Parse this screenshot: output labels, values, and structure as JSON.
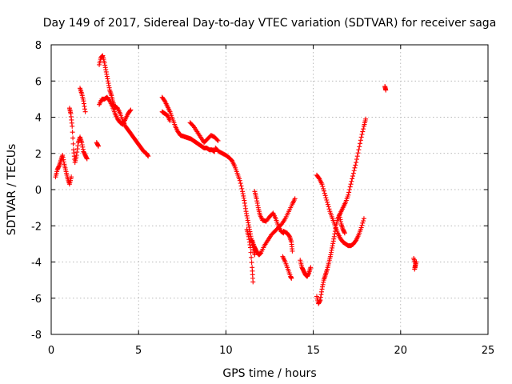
{
  "chart_data": {
    "type": "scatter",
    "title": "Day 149 of 2017, Sidereal Day-to-day VTEC variation (SDTVAR) for receiver saga",
    "xlabel": "GPS time / hours",
    "ylabel": "SDTVAR / TECUs",
    "xlim": [
      0,
      25
    ],
    "ylim": [
      -8,
      8
    ],
    "xticks": [
      0,
      5,
      10,
      15,
      20,
      25
    ],
    "yticks": [
      -8,
      -6,
      -4,
      -2,
      0,
      2,
      4,
      6,
      8
    ],
    "grid": true,
    "marker": "plus",
    "color": "#ff0000",
    "series": [
      {
        "name": "",
        "segments": [
          [
            [
              0.25,
              0.7
            ],
            [
              0.35,
              1.1
            ],
            [
              0.45,
              1.3
            ],
            [
              0.55,
              1.6
            ],
            [
              0.65,
              1.9
            ],
            [
              0.75,
              1.4
            ],
            [
              0.85,
              1.0
            ],
            [
              0.95,
              0.6
            ],
            [
              1.05,
              0.3
            ],
            [
              1.15,
              0.7
            ]
          ],
          [
            [
              1.05,
              4.5
            ],
            [
              1.12,
              4.2
            ],
            [
              1.2,
              3.5
            ],
            [
              1.28,
              2.2
            ],
            [
              1.36,
              1.5
            ],
            [
              1.45,
              1.9
            ],
            [
              1.55,
              2.6
            ],
            [
              1.65,
              2.9
            ],
            [
              1.75,
              2.6
            ],
            [
              1.85,
              2.1
            ],
            [
              1.95,
              1.9
            ],
            [
              2.05,
              1.7
            ]
          ],
          [
            [
              1.65,
              5.6
            ],
            [
              1.75,
              5.3
            ],
            [
              1.85,
              4.9
            ],
            [
              1.95,
              4.3
            ]
          ],
          [
            [
              2.75,
              6.9
            ],
            [
              2.85,
              7.3
            ],
            [
              2.95,
              7.4
            ],
            [
              3.05,
              7.0
            ],
            [
              3.15,
              6.5
            ],
            [
              3.25,
              6.0
            ],
            [
              3.35,
              5.5
            ],
            [
              3.45,
              5.2
            ],
            [
              3.55,
              4.8
            ],
            [
              3.65,
              4.5
            ]
          ],
          [
            [
              2.75,
              4.7
            ],
            [
              2.9,
              5.0
            ],
            [
              3.05,
              5.0
            ],
            [
              3.2,
              5.1
            ],
            [
              3.35,
              4.9
            ],
            [
              3.5,
              4.6
            ],
            [
              3.65,
              4.2
            ],
            [
              3.8,
              3.9
            ],
            [
              3.95,
              3.7
            ],
            [
              4.1,
              3.6
            ],
            [
              4.25,
              3.9
            ],
            [
              4.4,
              4.2
            ],
            [
              4.55,
              4.4
            ]
          ],
          [
            [
              3.65,
              4.6
            ],
            [
              3.8,
              4.5
            ],
            [
              3.95,
              4.2
            ],
            [
              4.1,
              3.8
            ],
            [
              4.25,
              3.5
            ],
            [
              4.4,
              3.3
            ],
            [
              4.55,
              3.1
            ],
            [
              4.7,
              2.9
            ],
            [
              4.85,
              2.7
            ],
            [
              5.0,
              2.5
            ],
            [
              5.15,
              2.3
            ],
            [
              5.3,
              2.1
            ],
            [
              5.45,
              2.0
            ],
            [
              5.55,
              1.85
            ]
          ],
          [
            [
              2.6,
              2.6
            ],
            [
              2.7,
              2.4
            ]
          ],
          [
            [
              6.35,
              5.1
            ],
            [
              6.5,
              4.9
            ],
            [
              6.65,
              4.6
            ],
            [
              6.8,
              4.3
            ],
            [
              6.95,
              3.9
            ],
            [
              7.1,
              3.5
            ],
            [
              7.25,
              3.2
            ],
            [
              7.4,
              3.0
            ],
            [
              7.55,
              2.95
            ],
            [
              7.7,
              2.9
            ],
            [
              7.85,
              2.85
            ],
            [
              8.0,
              2.8
            ],
            [
              8.15,
              2.7
            ],
            [
              8.3,
              2.6
            ],
            [
              8.45,
              2.5
            ],
            [
              8.6,
              2.4
            ],
            [
              8.75,
              2.3
            ],
            [
              8.9,
              2.3
            ],
            [
              9.05,
              2.2
            ],
            [
              9.2,
              2.2
            ],
            [
              9.35,
              2.1
            ]
          ],
          [
            [
              6.35,
              4.3
            ],
            [
              6.5,
              4.2
            ],
            [
              6.65,
              4.1
            ],
            [
              6.8,
              3.8
            ]
          ],
          [
            [
              7.95,
              3.7
            ],
            [
              8.15,
              3.5
            ],
            [
              8.35,
              3.2
            ],
            [
              8.55,
              2.9
            ],
            [
              8.75,
              2.6
            ],
            [
              8.95,
              2.8
            ],
            [
              9.15,
              3.0
            ],
            [
              9.35,
              2.9
            ],
            [
              9.55,
              2.7
            ]
          ],
          [
            [
              9.4,
              2.3
            ],
            [
              9.6,
              2.1
            ],
            [
              9.8,
              2.0
            ],
            [
              10.0,
              1.9
            ],
            [
              10.2,
              1.75
            ],
            [
              10.35,
              1.6
            ],
            [
              10.5,
              1.3
            ],
            [
              10.65,
              0.9
            ],
            [
              10.8,
              0.5
            ],
            [
              10.95,
              -0.1
            ],
            [
              11.05,
              -0.6
            ],
            [
              11.15,
              -1.2
            ],
            [
              11.25,
              -1.7
            ],
            [
              11.35,
              -2.2
            ],
            [
              11.45,
              -2.7
            ],
            [
              11.55,
              -3.2
            ],
            [
              11.65,
              -3.6
            ]
          ],
          [
            [
              11.2,
              -2.2
            ],
            [
              11.3,
              -2.6
            ],
            [
              11.4,
              -3.2
            ],
            [
              11.5,
              -4.3
            ],
            [
              11.55,
              -5.1
            ]
          ],
          [
            [
              11.5,
              -2.8
            ],
            [
              11.6,
              -3.1
            ],
            [
              11.7,
              -3.3
            ],
            [
              11.8,
              -3.5
            ],
            [
              11.9,
              -3.6
            ],
            [
              12.0,
              -3.5
            ]
          ],
          [
            [
              11.65,
              -0.1
            ],
            [
              11.75,
              -0.5
            ],
            [
              11.85,
              -1.0
            ],
            [
              11.95,
              -1.4
            ],
            [
              12.1,
              -1.7
            ],
            [
              12.3,
              -1.75
            ],
            [
              12.5,
              -1.5
            ],
            [
              12.7,
              -1.3
            ],
            [
              12.85,
              -1.6
            ],
            [
              13.0,
              -2.0
            ],
            [
              13.15,
              -2.3
            ],
            [
              13.3,
              -2.4
            ]
          ],
          [
            [
              12.0,
              -3.5
            ],
            [
              12.2,
              -3.1
            ],
            [
              12.4,
              -2.8
            ],
            [
              12.6,
              -2.5
            ],
            [
              12.8,
              -2.3
            ],
            [
              13.0,
              -2.1
            ],
            [
              13.2,
              -1.9
            ],
            [
              13.4,
              -1.6
            ],
            [
              13.6,
              -1.2
            ],
            [
              13.8,
              -0.8
            ],
            [
              13.95,
              -0.5
            ]
          ],
          [
            [
              13.3,
              -2.3
            ],
            [
              13.5,
              -2.4
            ],
            [
              13.65,
              -2.6
            ],
            [
              13.75,
              -2.9
            ],
            [
              13.8,
              -3.4
            ]
          ],
          [
            [
              13.25,
              -3.7
            ],
            [
              13.4,
              -4.0
            ],
            [
              13.55,
              -4.4
            ],
            [
              13.7,
              -4.8
            ],
            [
              13.75,
              -4.9
            ]
          ],
          [
            [
              14.25,
              -3.9
            ],
            [
              14.35,
              -4.3
            ],
            [
              14.45,
              -4.5
            ],
            [
              14.55,
              -4.7
            ],
            [
              14.65,
              -4.8
            ],
            [
              14.75,
              -4.6
            ],
            [
              14.85,
              -4.3
            ]
          ],
          [
            [
              15.2,
              0.8
            ],
            [
              15.35,
              0.6
            ],
            [
              15.5,
              0.3
            ],
            [
              15.65,
              -0.2
            ],
            [
              15.8,
              -0.7
            ],
            [
              15.95,
              -1.2
            ],
            [
              16.1,
              -1.6
            ],
            [
              16.25,
              -2.0
            ],
            [
              16.4,
              -2.4
            ],
            [
              16.55,
              -2.7
            ],
            [
              16.7,
              -2.9
            ],
            [
              16.85,
              -3.0
            ],
            [
              17.0,
              -3.1
            ],
            [
              17.15,
              -3.1
            ],
            [
              17.3,
              -3.0
            ],
            [
              17.45,
              -2.8
            ],
            [
              17.6,
              -2.5
            ],
            [
              17.75,
              -2.1
            ],
            [
              17.9,
              -1.6
            ]
          ],
          [
            [
              15.2,
              -5.9
            ],
            [
              15.3,
              -6.3
            ],
            [
              15.4,
              -6.1
            ],
            [
              15.5,
              -5.5
            ],
            [
              15.6,
              -5.0
            ],
            [
              15.7,
              -4.7
            ],
            [
              15.8,
              -4.4
            ],
            [
              15.9,
              -4.0
            ],
            [
              16.0,
              -3.6
            ],
            [
              16.1,
              -3.1
            ],
            [
              16.2,
              -2.6
            ],
            [
              16.3,
              -2.0
            ],
            [
              16.4,
              -1.6
            ],
            [
              16.55,
              -1.3
            ],
            [
              16.7,
              -1.0
            ],
            [
              16.85,
              -0.7
            ],
            [
              17.0,
              -0.3
            ],
            [
              17.15,
              0.3
            ],
            [
              17.3,
              0.9
            ],
            [
              17.45,
              1.5
            ],
            [
              17.6,
              2.2
            ],
            [
              17.75,
              2.9
            ],
            [
              17.9,
              3.5
            ],
            [
              18.0,
              3.9
            ]
          ],
          [
            [
              16.5,
              -1.4
            ],
            [
              16.6,
              -1.9
            ],
            [
              16.7,
              -2.2
            ],
            [
              16.8,
              -2.4
            ]
          ],
          [
            [
              19.1,
              5.7
            ],
            [
              19.15,
              5.5
            ]
          ],
          [
            [
              20.75,
              -3.8
            ],
            [
              20.85,
              -4.1
            ],
            [
              20.8,
              -4.4
            ],
            [
              20.9,
              -4.0
            ]
          ]
        ]
      }
    ]
  }
}
